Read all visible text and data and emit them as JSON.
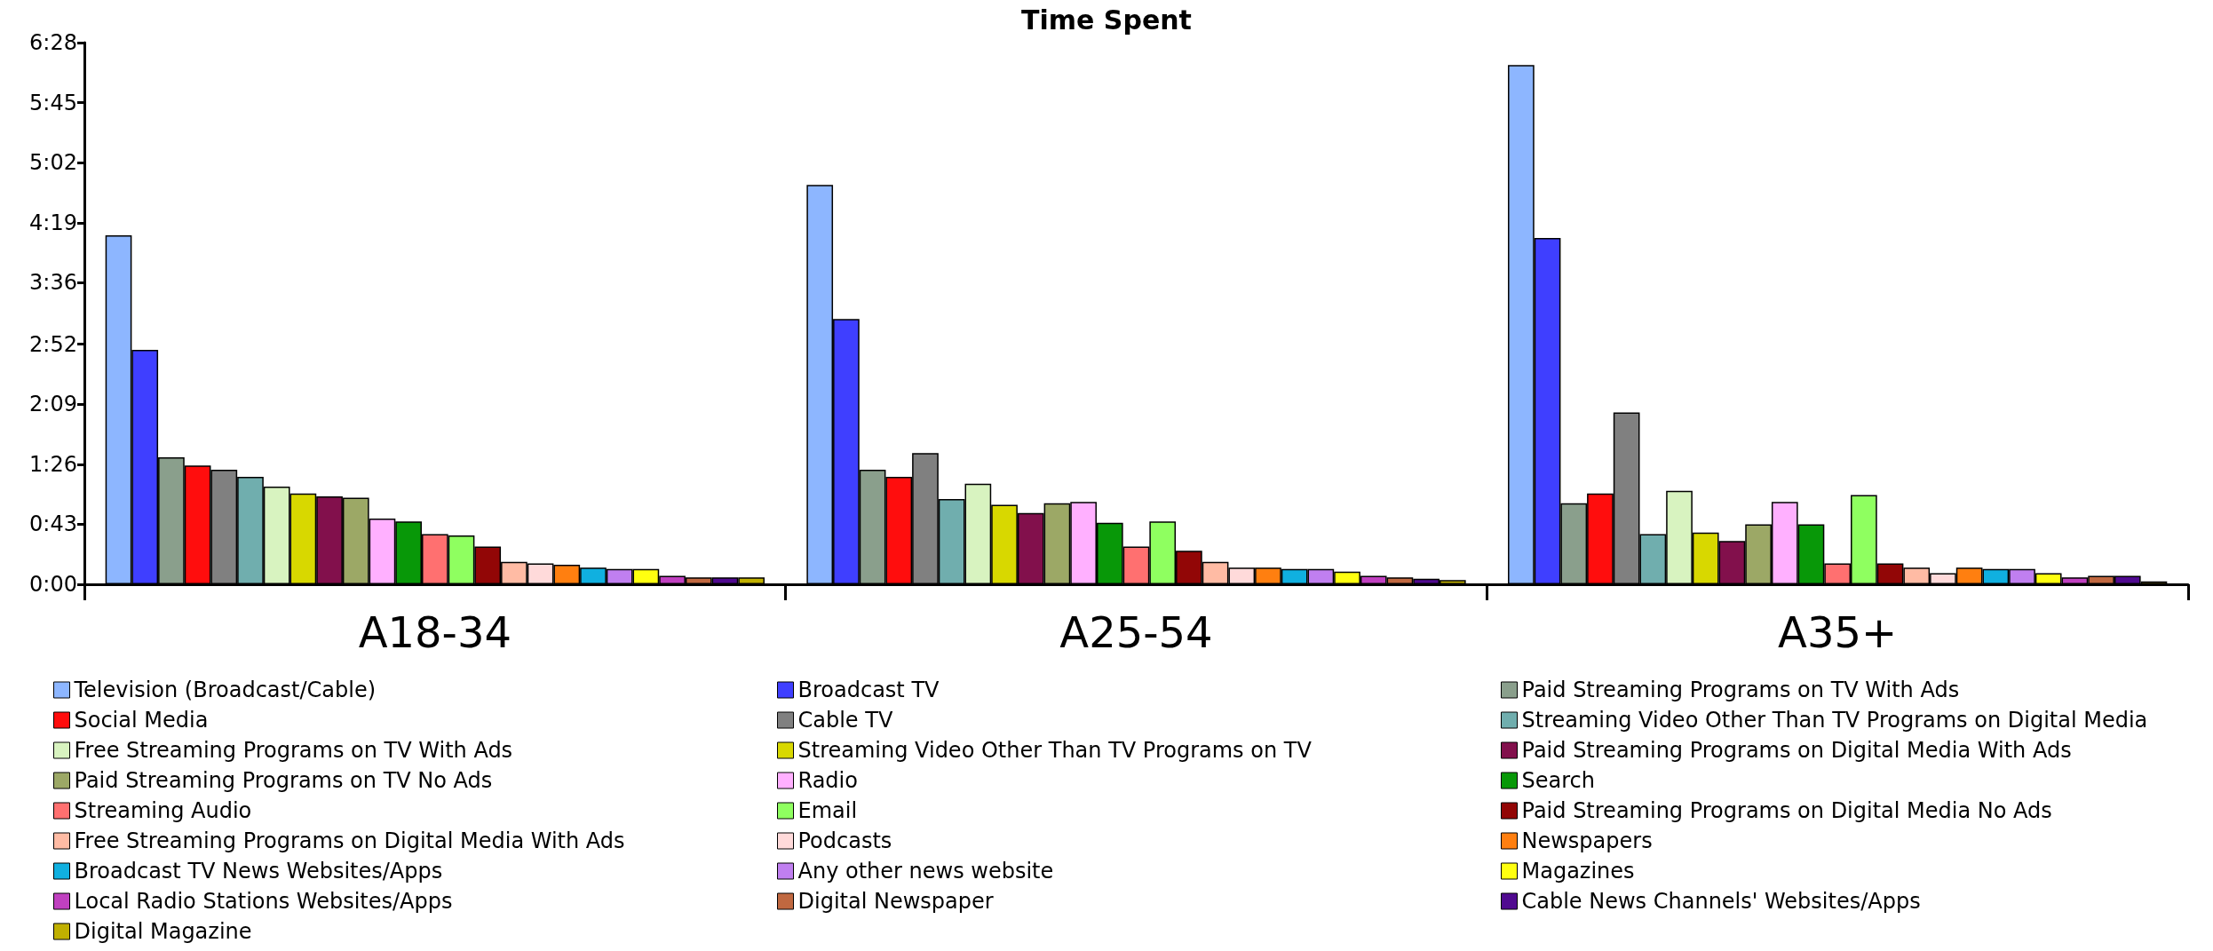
{
  "chart_data": {
    "type": "bar",
    "title": "Time Spent",
    "categories": [
      "A18-34",
      "A25-54",
      "A35+"
    ],
    "ylim": [
      0,
      388
    ],
    "yticks": [
      {
        "value": 0,
        "label": "0:00"
      },
      {
        "value": 43,
        "label": "0:43"
      },
      {
        "value": 86,
        "label": "1:26"
      },
      {
        "value": 129,
        "label": "2:09"
      },
      {
        "value": 172,
        "label": "2:52"
      },
      {
        "value": 216,
        "label": "3:36"
      },
      {
        "value": 259,
        "label": "4:19"
      },
      {
        "value": 302,
        "label": "5:02"
      },
      {
        "value": 345,
        "label": "5:45"
      },
      {
        "value": 388,
        "label": "6:28"
      }
    ],
    "grid": false,
    "legend": "bottom",
    "series": [
      {
        "name": "Television (Broadcast/Cable)",
        "color": "#8db6ff",
        "values": [
          250,
          286,
          372
        ]
      },
      {
        "name": "Broadcast TV",
        "color": "#3f3fff",
        "values": [
          168,
          190,
          248
        ]
      },
      {
        "name": "Paid Streaming Programs on TV With Ads",
        "color": "#8a9f8c",
        "values": [
          91,
          82,
          58
        ]
      },
      {
        "name": "Social Media",
        "color": "#ff0d0d",
        "values": [
          85,
          77,
          65
        ]
      },
      {
        "name": "Cable TV",
        "color": "#808080",
        "values": [
          82,
          94,
          123
        ]
      },
      {
        "name": "Streaming Video Other Than TV Programs on Digital Media",
        "color": "#70aeae",
        "values": [
          77,
          61,
          36
        ]
      },
      {
        "name": "Free Streaming Programs on TV With Ads",
        "color": "#d8f3c0",
        "values": [
          70,
          72,
          67
        ]
      },
      {
        "name": "Streaming Video Other Than TV Programs on TV",
        "color": "#d8d800",
        "values": [
          65,
          57,
          37
        ]
      },
      {
        "name": "Paid Streaming Programs on Digital Media With Ads",
        "color": "#82104c",
        "values": [
          63,
          51,
          31
        ]
      },
      {
        "name": "Paid Streaming Programs on TV No Ads",
        "color": "#9ca866",
        "values": [
          62,
          58,
          43
        ]
      },
      {
        "name": "Radio",
        "color": "#ffb0ff",
        "values": [
          47,
          59,
          59
        ]
      },
      {
        "name": "Search",
        "color": "#089808",
        "values": [
          45,
          44,
          43
        ]
      },
      {
        "name": "Streaming Audio",
        "color": "#ff7070",
        "values": [
          36,
          27,
          15
        ]
      },
      {
        "name": "Email",
        "color": "#8fff60",
        "values": [
          35,
          45,
          64
        ]
      },
      {
        "name": "Paid Streaming Programs on Digital Media No Ads",
        "color": "#920606",
        "values": [
          27,
          24,
          15
        ]
      },
      {
        "name": "Free Streaming Programs on Digital Media With Ads",
        "color": "#ffbba4",
        "values": [
          16,
          16,
          12
        ]
      },
      {
        "name": "Podcasts",
        "color": "#ffdada",
        "values": [
          15,
          12,
          8
        ]
      },
      {
        "name": "Newspapers",
        "color": "#ff7f10",
        "values": [
          14,
          12,
          12
        ]
      },
      {
        "name": "Broadcast TV News Websites/Apps",
        "color": "#10b0e0",
        "values": [
          12,
          11,
          11
        ]
      },
      {
        "name": "Any other news website",
        "color": "#c07ff0",
        "values": [
          11,
          11,
          11
        ]
      },
      {
        "name": "Magazines",
        "color": "#ffff10",
        "values": [
          11,
          9,
          8
        ]
      },
      {
        "name": "Local Radio Stations Websites/Apps",
        "color": "#c040c0",
        "values": [
          6,
          6,
          5
        ]
      },
      {
        "name": "Digital Newspaper",
        "color": "#c06840",
        "values": [
          5,
          5,
          6
        ]
      },
      {
        "name": "Cable News Channels' Websites/Apps",
        "color": "#500a90",
        "values": [
          5,
          4,
          6
        ]
      },
      {
        "name": "Digital Magazine",
        "color": "#c0b000",
        "values": [
          5,
          3,
          2
        ]
      }
    ]
  }
}
